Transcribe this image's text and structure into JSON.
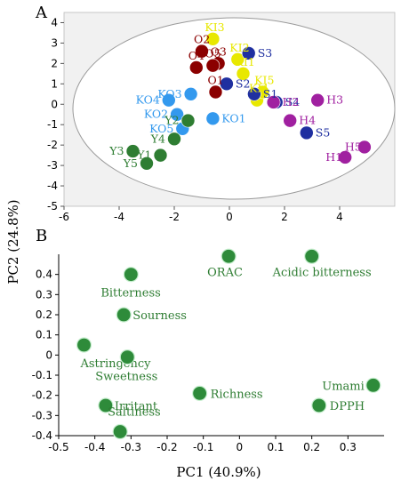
{
  "figure": {
    "panel_a_label": "A",
    "panel_b_label": "B",
    "ylabel": "PC2 (24.8%)",
    "xlabel": "PC1 (40.9%)"
  },
  "chart_data": [
    {
      "type": "scatter",
      "panel": "A",
      "xlim": [
        -6,
        6
      ],
      "ylim": [
        -5,
        4.5
      ],
      "xticks": [
        -6,
        -4,
        -2,
        0,
        2,
        4
      ],
      "yticks": [
        -5,
        -4,
        -3,
        -2,
        -1,
        0,
        1,
        2,
        3,
        4
      ],
      "grid": false,
      "confidence_ellipse": true,
      "colors": {
        "O": "#8b0000",
        "KI": "#e8e800",
        "S": "#1f2fa0",
        "H": "#a020a0",
        "KO": "#3399ee",
        "Y": "#2e7d32"
      },
      "points": [
        {
          "label": "O1",
          "group": "O",
          "x": -0.5,
          "y": 0.6
        },
        {
          "label": "O2",
          "group": "O",
          "x": -1.0,
          "y": 2.6
        },
        {
          "label": "O3",
          "group": "O",
          "x": -0.4,
          "y": 2.0
        },
        {
          "label": "O4",
          "group": "O",
          "x": -1.2,
          "y": 1.8
        },
        {
          "label": "O5",
          "group": "O",
          "x": -0.6,
          "y": 1.9
        },
        {
          "label": "KI1",
          "group": "KI",
          "x": 0.5,
          "y": 1.5
        },
        {
          "label": "KI2",
          "group": "KI",
          "x": 0.3,
          "y": 2.2
        },
        {
          "label": "KI3",
          "group": "KI",
          "x": -0.6,
          "y": 3.2
        },
        {
          "label": "KI4",
          "group": "KI",
          "x": 1.0,
          "y": 0.2
        },
        {
          "label": "KI5",
          "group": "KI",
          "x": 1.2,
          "y": 0.6
        },
        {
          "label": "S1",
          "group": "S",
          "x": 0.9,
          "y": 0.5
        },
        {
          "label": "S2",
          "group": "S",
          "x": -0.1,
          "y": 1.0
        },
        {
          "label": "S3",
          "group": "S",
          "x": 0.7,
          "y": 2.5
        },
        {
          "label": "S4",
          "group": "S",
          "x": 1.7,
          "y": 0.1
        },
        {
          "label": "S5",
          "group": "S",
          "x": 2.8,
          "y": -1.4
        },
        {
          "label": "H1",
          "group": "H",
          "x": 4.2,
          "y": -2.6
        },
        {
          "label": "H2",
          "group": "H",
          "x": 1.6,
          "y": 0.1
        },
        {
          "label": "H3",
          "group": "H",
          "x": 3.2,
          "y": 0.2
        },
        {
          "label": "H4",
          "group": "H",
          "x": 2.2,
          "y": -0.8
        },
        {
          "label": "H5",
          "group": "H",
          "x": 4.9,
          "y": -2.1
        },
        {
          "label": "KO1",
          "group": "KO",
          "x": -0.6,
          "y": -0.7
        },
        {
          "label": "KO2",
          "group": "KO",
          "x": -1.9,
          "y": -0.5
        },
        {
          "label": "KO3",
          "group": "KO",
          "x": -1.4,
          "y": 0.5
        },
        {
          "label": "KO4",
          "group": "KO",
          "x": -2.2,
          "y": 0.2
        },
        {
          "label": "KO5",
          "group": "KO",
          "x": -1.7,
          "y": -1.2
        },
        {
          "label": "Y1",
          "group": "Y",
          "x": -2.5,
          "y": -2.5
        },
        {
          "label": "Y2",
          "group": "Y",
          "x": -1.5,
          "y": -0.8
        },
        {
          "label": "Y3",
          "group": "Y",
          "x": -3.5,
          "y": -2.3
        },
        {
          "label": "Y4",
          "group": "Y",
          "x": -2.0,
          "y": -1.7
        },
        {
          "label": "Y5",
          "group": "Y",
          "x": -3.0,
          "y": -2.9
        }
      ]
    },
    {
      "type": "scatter",
      "panel": "B",
      "xlim": [
        -0.5,
        0.4
      ],
      "ylim": [
        -0.4,
        0.5
      ],
      "xticks": [
        -0.5,
        -0.4,
        -0.3,
        -0.2,
        -0.1,
        0,
        0.1,
        0.2,
        0.3
      ],
      "yticks": [
        -0.4,
        -0.3,
        -0.2,
        -0.1,
        0,
        0.1,
        0.2,
        0.3,
        0.4
      ],
      "grid": false,
      "point_color": "#2e8b3a",
      "points": [
        {
          "label": "ORAC",
          "x": -0.03,
          "y": 0.49
        },
        {
          "label": "Acidic bitterness",
          "x": 0.2,
          "y": 0.49
        },
        {
          "label": "Bitterness",
          "x": -0.3,
          "y": 0.4
        },
        {
          "label": "Sourness",
          "x": -0.32,
          "y": 0.2
        },
        {
          "label": "Astringency",
          "x": -0.43,
          "y": 0.05
        },
        {
          "label": "Sweetness",
          "x": -0.31,
          "y": -0.01
        },
        {
          "label": "Richness",
          "x": -0.11,
          "y": -0.19
        },
        {
          "label": "Umami",
          "x": 0.37,
          "y": -0.15
        },
        {
          "label": "DPPH",
          "x": 0.22,
          "y": -0.25
        },
        {
          "label": "Irritant",
          "x": -0.37,
          "y": -0.25
        },
        {
          "label": "Saltiness",
          "x": -0.33,
          "y": -0.38
        }
      ]
    }
  ]
}
